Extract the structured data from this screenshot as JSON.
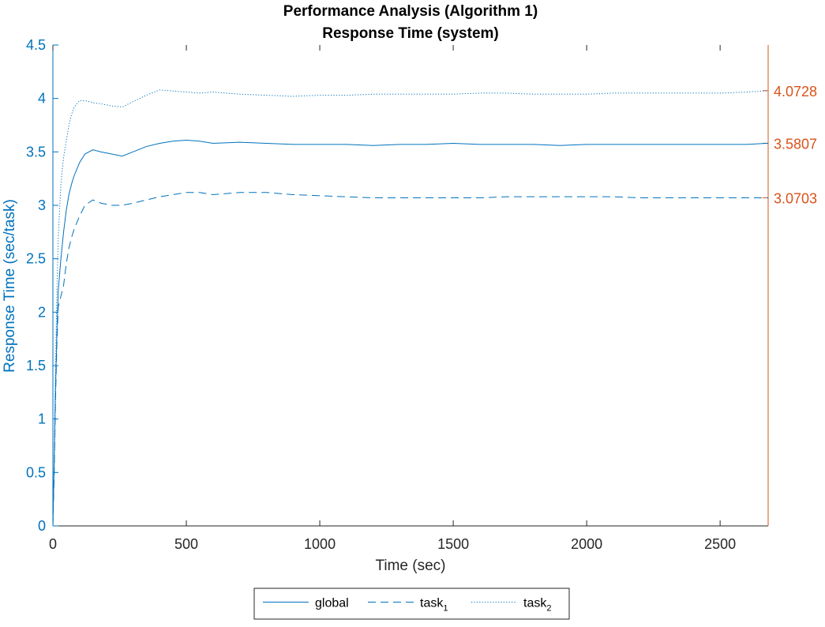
{
  "colors": {
    "left_axis": "#0072BD",
    "right_axis": "#D95319",
    "series": "#0072BD",
    "text": "#262626",
    "axis_lines": "#262626"
  },
  "chart_data": {
    "type": "line",
    "title": "Performance Analysis (Algorithm 1)",
    "subtitle": "Response Time (system)",
    "xlabel": "Time (sec)",
    "ylabel": "Response Time (sec/task)",
    "xlim": [
      0,
      2680
    ],
    "ylim": [
      0,
      4.5
    ],
    "xticks": [
      0,
      500,
      1000,
      1500,
      2000,
      2500
    ],
    "xtick_labels": [
      "0",
      "500",
      "1000",
      "1500",
      "2000",
      "2500"
    ],
    "yticks": [
      0,
      0.5,
      1,
      1.5,
      2,
      2.5,
      3,
      3.5,
      4,
      4.5
    ],
    "ytick_labels": [
      "0",
      "0.5",
      "1",
      "1.5",
      "2",
      "2.5",
      "3",
      "3.5",
      "4",
      "4.5"
    ],
    "right_axis": {
      "ticks": [
        4.0728,
        3.5807,
        3.0703
      ],
      "tick_labels": [
        "4.0728",
        "3.5807",
        "3.0703"
      ],
      "color": "#D95319"
    },
    "grid": false,
    "legend": {
      "placement": "bottom-center",
      "orientation": "horizontal"
    },
    "series": [
      {
        "name": "global",
        "legend_label": "global",
        "legend_sub": "",
        "style": "solid",
        "x": [
          0,
          5,
          10,
          15,
          20,
          30,
          40,
          50,
          60,
          70,
          80,
          100,
          120,
          150,
          180,
          220,
          260,
          300,
          350,
          400,
          450,
          500,
          550,
          600,
          700,
          800,
          900,
          1000,
          1100,
          1200,
          1300,
          1400,
          1500,
          1600,
          1700,
          1800,
          1900,
          2000,
          2100,
          2200,
          2300,
          2400,
          2500,
          2600,
          2680
        ],
        "y": [
          0,
          0.6,
          1.3,
          1.8,
          2.2,
          2.5,
          2.75,
          2.95,
          3.1,
          3.2,
          3.28,
          3.4,
          3.48,
          3.52,
          3.5,
          3.48,
          3.46,
          3.5,
          3.55,
          3.58,
          3.6,
          3.61,
          3.6,
          3.58,
          3.59,
          3.58,
          3.57,
          3.57,
          3.57,
          3.56,
          3.57,
          3.57,
          3.58,
          3.57,
          3.57,
          3.57,
          3.56,
          3.57,
          3.57,
          3.57,
          3.57,
          3.57,
          3.57,
          3.57,
          3.5807
        ]
      },
      {
        "name": "task_1",
        "legend_label": "task",
        "legend_sub": "1",
        "style": "dashed",
        "x": [
          0,
          5,
          10,
          15,
          20,
          30,
          40,
          50,
          60,
          70,
          80,
          100,
          120,
          150,
          180,
          220,
          260,
          300,
          350,
          400,
          450,
          500,
          550,
          600,
          700,
          800,
          900,
          1000,
          1100,
          1200,
          1300,
          1400,
          1500,
          1600,
          1700,
          1800,
          1900,
          2000,
          2100,
          2200,
          2300,
          2400,
          2500,
          2600,
          2680
        ],
        "y": [
          0,
          0.5,
          1.2,
          1.7,
          2.05,
          2.15,
          2.25,
          2.45,
          2.6,
          2.7,
          2.78,
          2.9,
          3.0,
          3.05,
          3.02,
          3.0,
          3.0,
          3.02,
          3.05,
          3.08,
          3.1,
          3.12,
          3.12,
          3.1,
          3.12,
          3.12,
          3.1,
          3.09,
          3.08,
          3.07,
          3.07,
          3.07,
          3.07,
          3.07,
          3.08,
          3.08,
          3.08,
          3.08,
          3.08,
          3.07,
          3.07,
          3.07,
          3.07,
          3.07,
          3.0703
        ]
      },
      {
        "name": "task_2",
        "legend_label": "task",
        "legend_sub": "2",
        "style": "dotted",
        "x": [
          0,
          5,
          10,
          15,
          20,
          30,
          40,
          50,
          60,
          70,
          80,
          100,
          120,
          150,
          180,
          220,
          260,
          300,
          350,
          400,
          450,
          500,
          550,
          600,
          700,
          800,
          900,
          1000,
          1100,
          1200,
          1300,
          1400,
          1500,
          1600,
          1700,
          1800,
          1900,
          2000,
          2100,
          2200,
          2300,
          2400,
          2500,
          2600,
          2680
        ],
        "y": [
          0,
          0.7,
          1.5,
          2.2,
          2.7,
          3.2,
          3.45,
          3.6,
          3.75,
          3.85,
          3.92,
          3.98,
          3.98,
          3.96,
          3.95,
          3.93,
          3.92,
          3.97,
          4.03,
          4.08,
          4.07,
          4.06,
          4.05,
          4.06,
          4.04,
          4.03,
          4.02,
          4.03,
          4.03,
          4.04,
          4.04,
          4.04,
          4.04,
          4.05,
          4.05,
          4.04,
          4.04,
          4.04,
          4.05,
          4.05,
          4.05,
          4.05,
          4.05,
          4.06,
          4.0728
        ]
      }
    ]
  }
}
